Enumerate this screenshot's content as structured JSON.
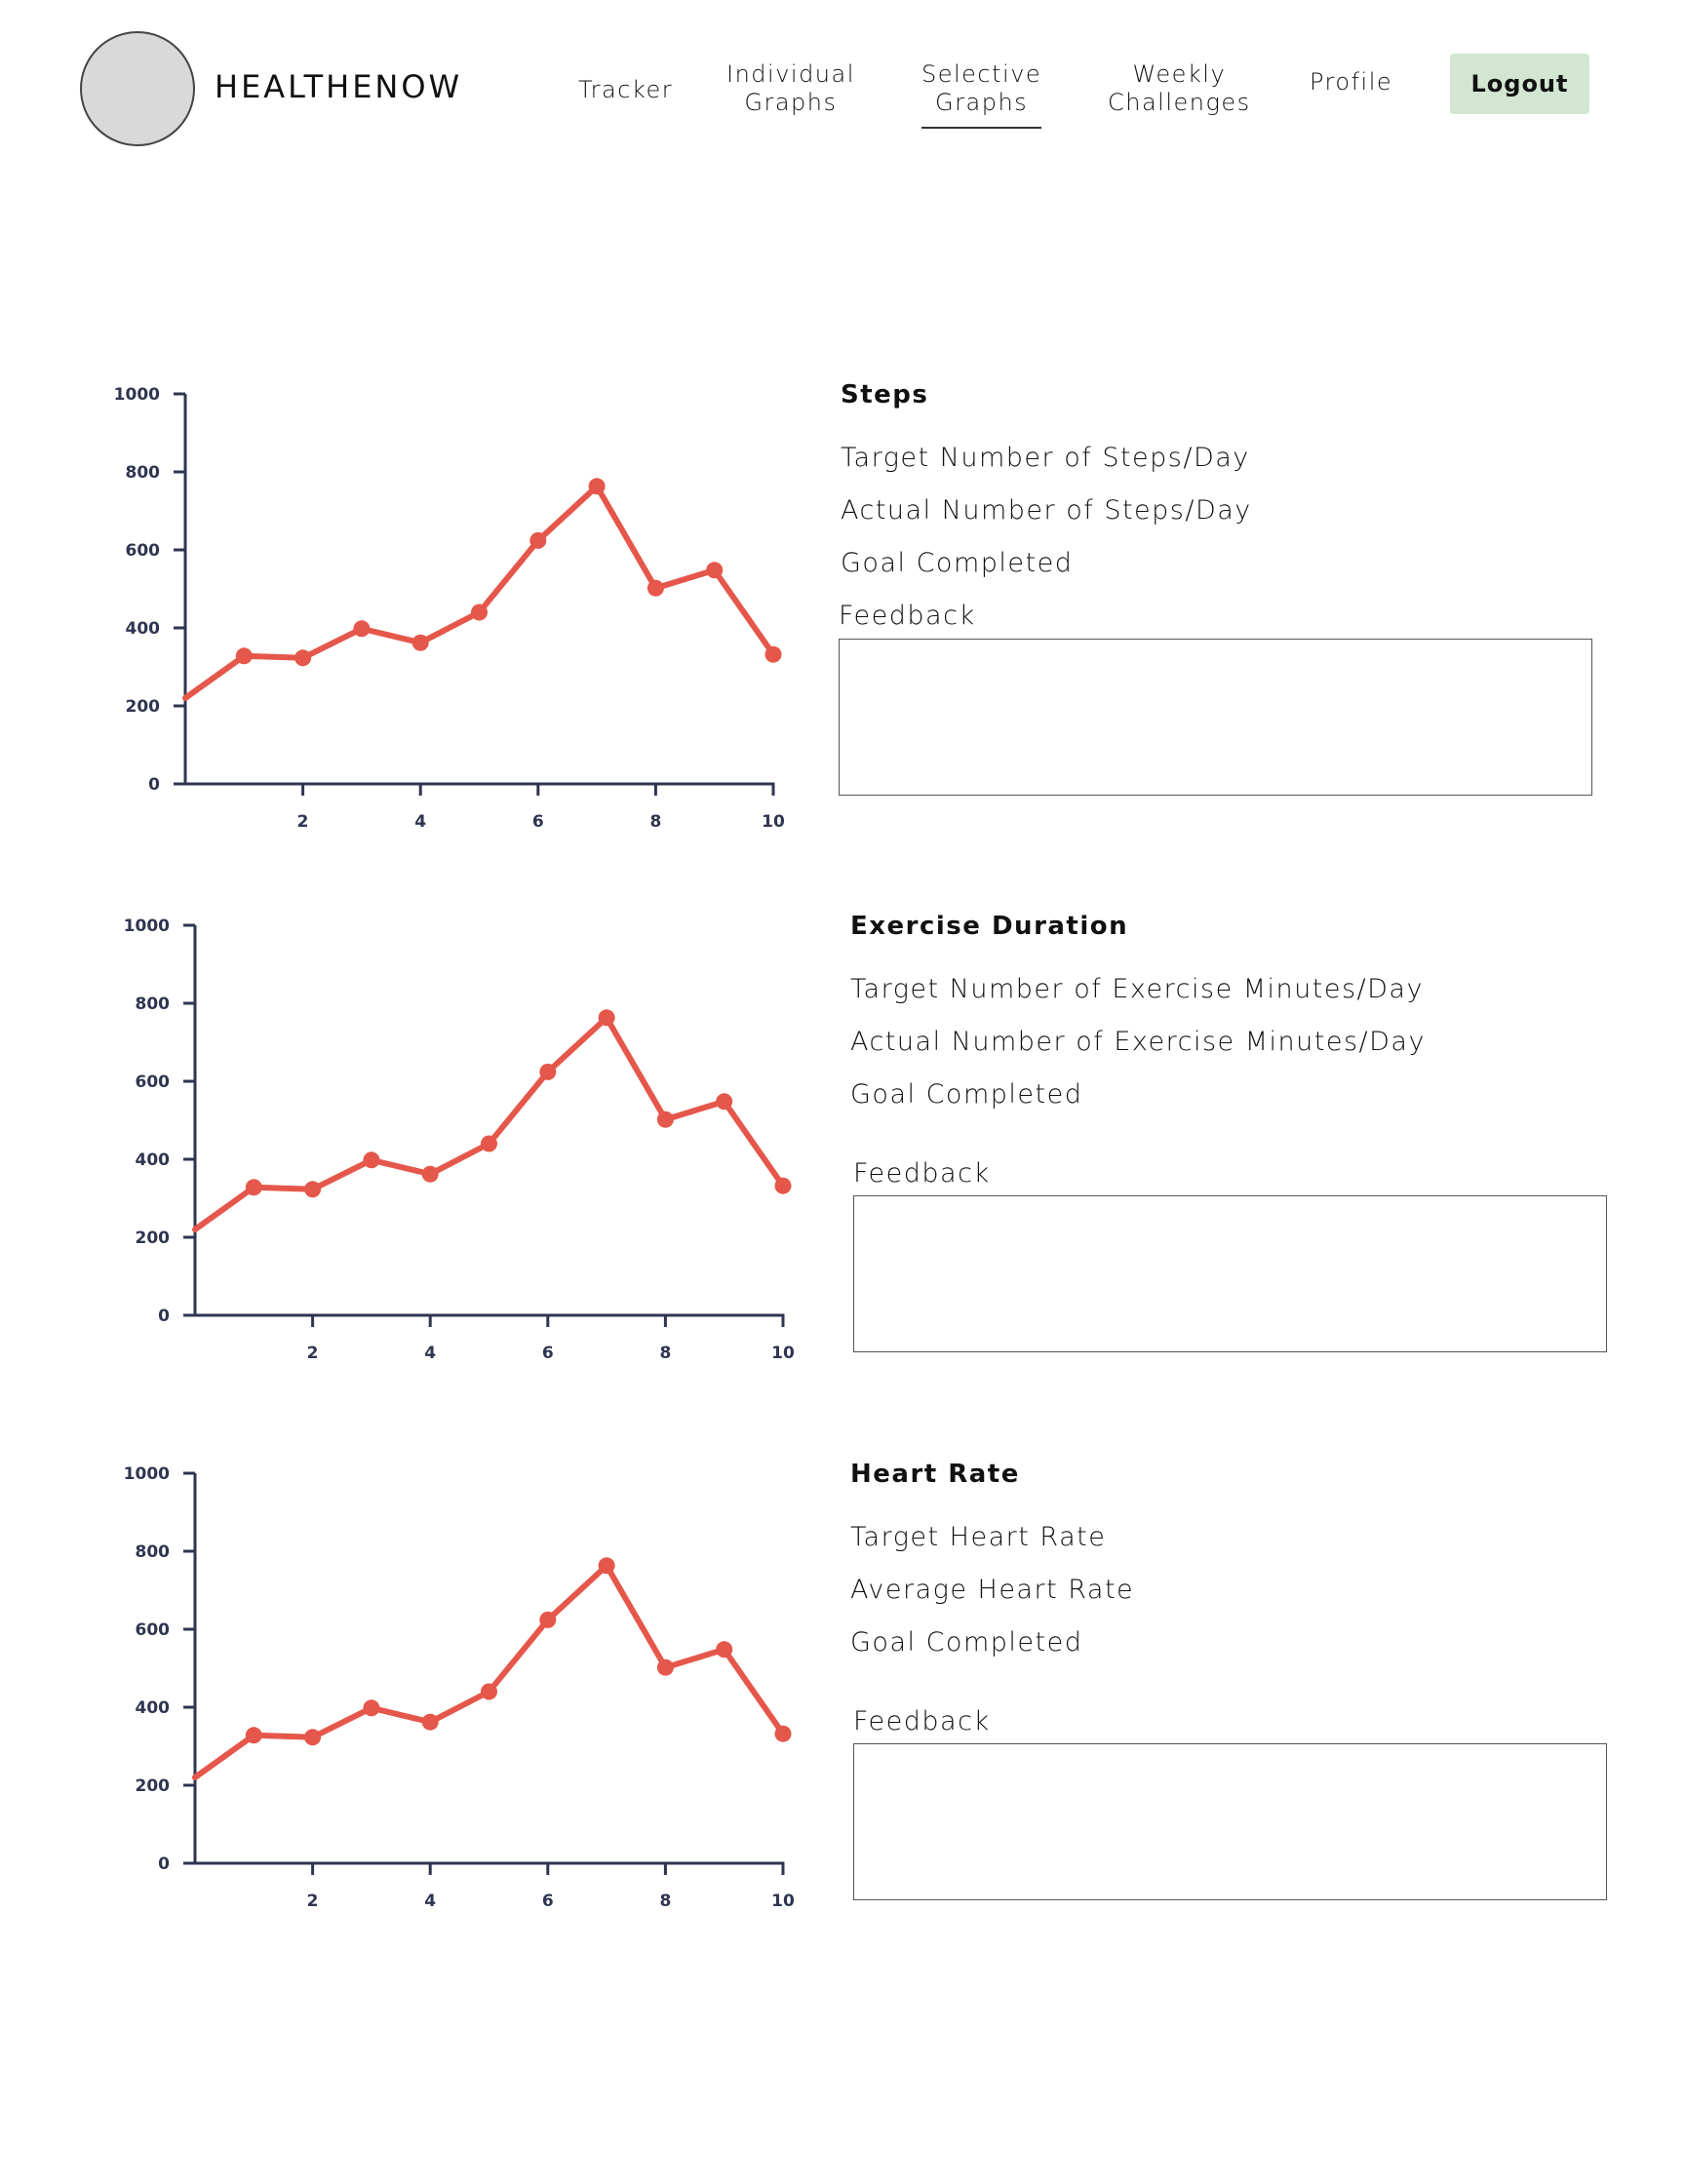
{
  "header": {
    "brand": "HEALTHENOW",
    "nav": [
      {
        "id": "tracker",
        "lines": [
          "Tracker"
        ]
      },
      {
        "id": "individual",
        "lines": [
          "Individual",
          "Graphs"
        ]
      },
      {
        "id": "selective",
        "lines": [
          "Selective",
          "Graphs"
        ],
        "active": true
      },
      {
        "id": "weekly",
        "lines": [
          "Weekly",
          "Challenges"
        ]
      },
      {
        "id": "profile",
        "lines": [
          "Profile"
        ]
      }
    ],
    "logout_label": "Logout"
  },
  "sections": [
    {
      "title": "Steps",
      "metrics": [
        "Target Number of Steps/Day",
        "Actual Number of Steps/Day",
        "Goal Completed"
      ],
      "feedback_label": "Feedback",
      "feedback_value": ""
    },
    {
      "title": "Exercise Duration",
      "metrics": [
        "Target Number of Exercise Minutes/Day",
        "Actual Number of Exercise Minutes/Day",
        "Goal Completed"
      ],
      "feedback_label": "Feedback",
      "feedback_value": ""
    },
    {
      "title": "Heart Rate",
      "metrics": [
        "Target Heart Rate",
        "Average Heart Rate",
        "Goal Completed"
      ],
      "feedback_label": "Feedback",
      "feedback_value": ""
    }
  ],
  "colors": {
    "series": "#e5574a",
    "axis": "#2f3550",
    "logout_bg": "#d2e6d2",
    "avatar": "#d9d9d9"
  },
  "chart_data": [
    {
      "type": "line",
      "x": [
        0,
        1,
        2,
        3,
        4,
        5,
        6,
        7,
        8,
        9,
        10
      ],
      "values": [
        220,
        328,
        323,
        398,
        362,
        440,
        624,
        763,
        502,
        548,
        332
      ],
      "x_ticks": [
        2,
        4,
        6,
        8,
        10
      ],
      "y_ticks": [
        0,
        200,
        400,
        600,
        800,
        1000
      ],
      "markers_from_index": 1,
      "xlim": [
        0,
        10
      ],
      "ylim": [
        0,
        1000
      ],
      "title": "",
      "xlabel": "",
      "ylabel": "",
      "grid": false
    },
    {
      "type": "line",
      "x": [
        0,
        1,
        2,
        3,
        4,
        5,
        6,
        7,
        8,
        9,
        10
      ],
      "values": [
        220,
        328,
        323,
        398,
        362,
        440,
        624,
        763,
        502,
        548,
        332
      ],
      "x_ticks": [
        2,
        4,
        6,
        8,
        10
      ],
      "y_ticks": [
        0,
        200,
        400,
        600,
        800,
        1000
      ],
      "markers_from_index": 1,
      "xlim": [
        0,
        10
      ],
      "ylim": [
        0,
        1000
      ],
      "title": "",
      "xlabel": "",
      "ylabel": "",
      "grid": false
    },
    {
      "type": "line",
      "x": [
        0,
        1,
        2,
        3,
        4,
        5,
        6,
        7,
        8,
        9,
        10
      ],
      "values": [
        220,
        328,
        323,
        398,
        362,
        440,
        624,
        763,
        502,
        548,
        332
      ],
      "x_ticks": [
        2,
        4,
        6,
        8,
        10
      ],
      "y_ticks": [
        0,
        200,
        400,
        600,
        800,
        1000
      ],
      "markers_from_index": 1,
      "xlim": [
        0,
        10
      ],
      "ylim": [
        0,
        1000
      ],
      "title": "",
      "xlabel": "",
      "ylabel": "",
      "grid": false
    }
  ]
}
